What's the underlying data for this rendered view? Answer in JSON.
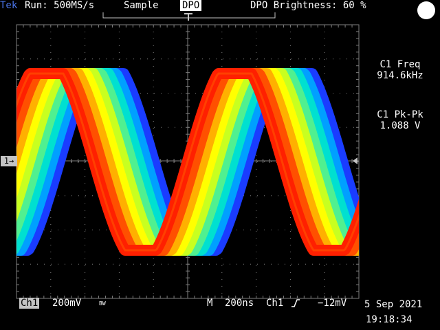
{
  "header": {
    "brand": "Tek",
    "run_status": "Run: 500MS/s",
    "acq_mode": "Sample",
    "dpo_badge": "DPO",
    "dpo_brightness": "DPO Brightness: 60 %"
  },
  "measurements": {
    "freq_label": "C1 Freq",
    "freq_value": "914.6kHz",
    "pkpk_label": "C1 Pk-Pk",
    "pkpk_value": "1.088 V"
  },
  "markers": {
    "ch1_marker": "1→"
  },
  "status_bar": {
    "channel": "Ch1",
    "vertical_scale": "200mV",
    "bw_limit": "BW",
    "timebase_prefix": "M",
    "timebase": "200ns",
    "trigger_source": "Ch1",
    "trigger_level": "−12mV",
    "date": "5 Sep 2021",
    "time": "19:18:34"
  },
  "colors": {
    "graticule": "#7f7f7f",
    "brand": "#4a74e8",
    "label_bg": "#c4c4c4",
    "persistence_ramp": [
      "#1a3cff",
      "#00a0ff",
      "#00e0d0",
      "#50f090",
      "#c8ff20",
      "#ffff00",
      "#ffb000",
      "#ff5000",
      "#ff2000"
    ]
  },
  "icons": {
    "trigger_edge": "rising-edge-icon",
    "trigger_position": "trigger-position-marker-icon",
    "trigger_level": "trigger-level-arrow-icon",
    "corner": "round-indicator-icon"
  }
}
